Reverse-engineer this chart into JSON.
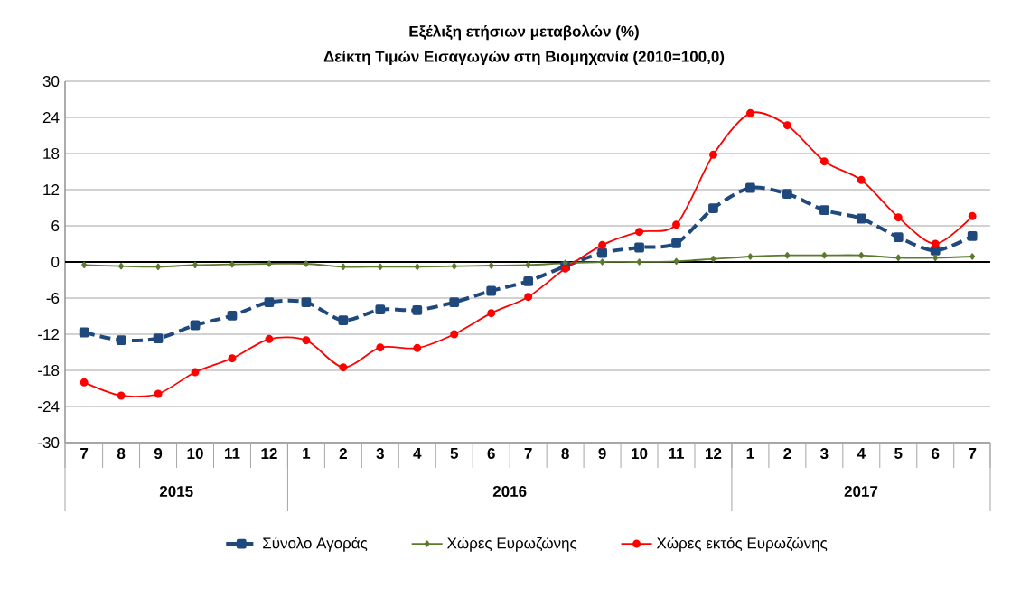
{
  "chart_data": {
    "type": "line",
    "title": "Εξέλιξη ετήσιων μεταβολών (%)",
    "subtitle": "Δείκτη Τιμών Εισαγωγών στη Βιομηχανία (2010=100,0)",
    "x": [
      "2015-07",
      "2015-08",
      "2015-09",
      "2015-10",
      "2015-11",
      "2015-12",
      "2016-01",
      "2016-02",
      "2016-03",
      "2016-04",
      "2016-05",
      "2016-06",
      "2016-07",
      "2016-08",
      "2016-09",
      "2016-10",
      "2016-11",
      "2016-12",
      "2017-01",
      "2017-02",
      "2017-03",
      "2017-04",
      "2017-05",
      "2017-06",
      "2017-07"
    ],
    "xlim": [
      "2015-06-16",
      "2017-07-16"
    ],
    "xticks": [
      {
        "value": "2015-07",
        "label": "7"
      },
      {
        "value": "2015-08",
        "label": "8"
      },
      {
        "value": "2015-09",
        "label": "9"
      },
      {
        "value": "2015-10",
        "label": "10"
      },
      {
        "value": "2015-11",
        "label": "11"
      },
      {
        "value": "2015-12",
        "label": "12"
      },
      {
        "value": "2016-01",
        "label": "1"
      },
      {
        "value": "2016-02",
        "label": "2"
      },
      {
        "value": "2016-03",
        "label": "3"
      },
      {
        "value": "2016-04",
        "label": "4"
      },
      {
        "value": "2016-05",
        "label": "5"
      },
      {
        "value": "2016-06",
        "label": "6"
      },
      {
        "value": "2016-07",
        "label": "7"
      },
      {
        "value": "2016-08",
        "label": "8"
      },
      {
        "value": "2016-09",
        "label": "9"
      },
      {
        "value": "2016-10",
        "label": "10"
      },
      {
        "value": "2016-11",
        "label": "11"
      },
      {
        "value": "2016-12",
        "label": "12"
      },
      {
        "value": "2017-01",
        "label": "1"
      },
      {
        "value": "2017-02",
        "label": "2"
      },
      {
        "value": "2017-03",
        "label": "3"
      },
      {
        "value": "2017-04",
        "label": "4"
      },
      {
        "value": "2017-05",
        "label": "5"
      },
      {
        "value": "2017-06",
        "label": "6"
      },
      {
        "value": "2017-07",
        "label": "7"
      }
    ],
    "annotations": [
      "2015",
      "2016",
      "2017"
    ],
    "ylim": [
      -30,
      30
    ],
    "yticks": [
      -30,
      -24,
      -18,
      -12,
      -6,
      0,
      6,
      12,
      18,
      24,
      30
    ],
    "grid": "y",
    "legend": "bottom",
    "series": [
      {
        "name": "Σύνολο Αγοράς",
        "color": "#1f497d",
        "marker": "square",
        "line_style": "dashed",
        "values": [
          -11.7,
          -13,
          -12.7,
          -10.5,
          -8.9,
          -6.7,
          -6.7,
          -9.7,
          -7.9,
          -8,
          -6.7,
          -4.8,
          -3.2,
          -0.7,
          1.5,
          2.4,
          3.1,
          8.9,
          12.3,
          11.3,
          8.6,
          7.2,
          4.1,
          1.9,
          4.3
        ]
      },
      {
        "name": "Χώρες Ευρωζώνης",
        "color": "#5a7a2e",
        "marker": "diamond",
        "line_style": "solid",
        "values": [
          -0.5,
          -0.7,
          -0.8,
          -0.5,
          -0.4,
          -0.3,
          -0.3,
          -0.8,
          -0.8,
          -0.8,
          -0.7,
          -0.6,
          -0.5,
          -0.2,
          0,
          0,
          0.1,
          0.5,
          0.9,
          1.1,
          1.1,
          1.1,
          0.7,
          0.7,
          0.9
        ]
      },
      {
        "name": "Χώρες εκτός Ευρωζώνης",
        "color": "#ff0000",
        "marker": "circle",
        "line_style": "solid",
        "values": [
          -20,
          -22.2,
          -21.9,
          -18.3,
          -16,
          -12.8,
          -13,
          -17.5,
          -14.2,
          -14.3,
          -12,
          -8.5,
          -5.8,
          -1.1,
          2.8,
          5,
          6.2,
          17.8,
          24.7,
          22.7,
          16.7,
          13.6,
          7.4,
          3,
          7.6
        ]
      }
    ]
  }
}
